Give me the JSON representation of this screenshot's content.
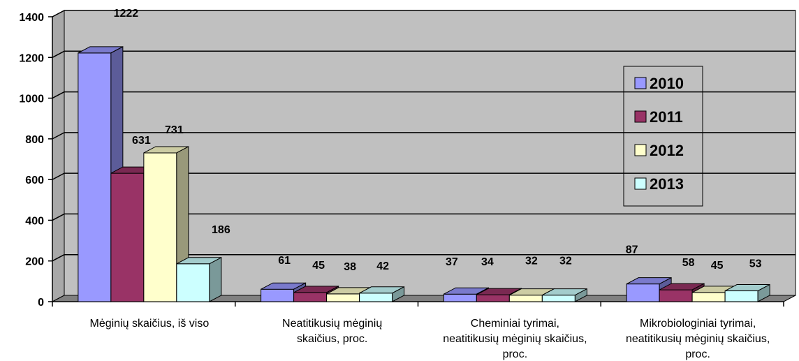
{
  "chart_data": {
    "type": "bar",
    "categories": [
      [
        "Mėginių skaičius, iš viso"
      ],
      [
        "Neatitikusių mėginių",
        "skaičius, proc."
      ],
      [
        "Cheminiai tyrimai,",
        "neatitikusių mėginių skaičius,",
        "proc."
      ],
      [
        "Mikrobiologiniai tyrimai,",
        "neatitikusių mėginių skaičius,",
        "proc."
      ]
    ],
    "series": [
      {
        "name": "2010",
        "values": [
          1222,
          61,
          37,
          87
        ]
      },
      {
        "name": "2011",
        "values": [
          631,
          45,
          34,
          58
        ]
      },
      {
        "name": "2012",
        "values": [
          731,
          38,
          32,
          45
        ]
      },
      {
        "name": "2013",
        "values": [
          186,
          42,
          32,
          53
        ]
      }
    ],
    "ylim": [
      0,
      1400
    ],
    "yticks": [
      0,
      200,
      400,
      600,
      800,
      1000,
      1200,
      1400
    ],
    "grid": true,
    "legend_position": "right",
    "colors": {
      "series": [
        "#9999ff",
        "#993366",
        "#ffffcc",
        "#ccffff"
      ],
      "back_wall": "#c0c0c0",
      "floor": "#808080",
      "gridline": "#000000"
    }
  }
}
